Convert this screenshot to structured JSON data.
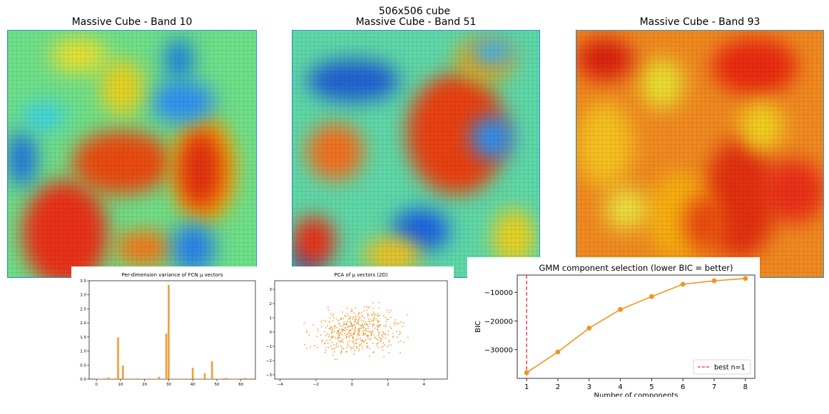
{
  "figure_title": "506x506 cube",
  "colors": {
    "accent": "#f0a040",
    "best_line": "#e03030",
    "bic_line": "#f0961e"
  },
  "heatmaps": [
    {
      "title": "Massive Cube - Band 10",
      "colormap": "jet"
    },
    {
      "title": "Massive Cube - Band 51",
      "colormap": "jet"
    },
    {
      "title": "Massive Cube - Band 93",
      "colormap": "jet"
    }
  ],
  "chart_data": [
    {
      "type": "bar",
      "title": "Per-dimension variance of FCN μ vectors",
      "xlabel": "",
      "ylabel": "",
      "xlim": [
        -3,
        66
      ],
      "ylim": [
        0,
        3.5
      ],
      "xticks": [
        0,
        10,
        20,
        30,
        40,
        50,
        60
      ],
      "yticks": [
        0.0,
        0.5,
        1.0,
        1.5,
        2.0,
        2.5,
        3.0,
        3.5
      ],
      "categories": [
        0,
        1,
        2,
        3,
        4,
        5,
        6,
        7,
        8,
        9,
        10,
        11,
        12,
        13,
        14,
        15,
        16,
        17,
        18,
        19,
        20,
        21,
        22,
        23,
        24,
        25,
        26,
        27,
        28,
        29,
        30,
        31,
        32,
        33,
        34,
        35,
        36,
        37,
        38,
        39,
        40,
        41,
        42,
        43,
        44,
        45,
        46,
        47,
        48,
        49,
        50,
        51,
        52,
        53,
        54,
        55,
        56,
        57,
        58,
        59,
        60,
        61,
        62,
        63
      ],
      "values": [
        0.01,
        0.01,
        0.01,
        0.02,
        0.02,
        0.06,
        0.02,
        0.01,
        0.03,
        1.48,
        0.01,
        0.48,
        0.02,
        0.01,
        0.01,
        0.01,
        0.01,
        0.02,
        0.01,
        0.01,
        0.01,
        0.01,
        0.02,
        0.01,
        0.01,
        0.01,
        0.08,
        0.01,
        0.02,
        1.62,
        3.35,
        0.02,
        0.01,
        0.01,
        0.01,
        0.01,
        0.02,
        0.01,
        0.01,
        0.01,
        0.4,
        0.02,
        0.01,
        0.02,
        0.01,
        0.2,
        0.01,
        0.01,
        0.63,
        0.02,
        0.01,
        0.01,
        0.01,
        0.03,
        0.04,
        0.01,
        0.02,
        0.01,
        0.01,
        0.02,
        0.01,
        0.03,
        0.04,
        0.02
      ]
    },
    {
      "type": "scatter",
      "title": "PCA of μ vectors (2D)",
      "xlabel": "",
      "ylabel": "",
      "xlim": [
        -4.3,
        5.3
      ],
      "ylim": [
        -3.3,
        3.6
      ],
      "xticks": [
        -4,
        -2,
        0,
        2,
        4
      ],
      "yticks": [
        -3,
        -2,
        -1,
        0,
        1,
        2,
        3
      ],
      "point_count": 500,
      "x_center": 0.3,
      "x_spread": 1.9,
      "y_spread": 1.1
    },
    {
      "type": "line",
      "title": "GMM component selection (lower BIC = better)",
      "xlabel": "Number of components",
      "ylabel": "BIC",
      "x": [
        1,
        2,
        3,
        4,
        5,
        6,
        7,
        8
      ],
      "y": [
        -38000,
        -30800,
        -22500,
        -16000,
        -11500,
        -7200,
        -6000,
        -5200
      ],
      "xlim": [
        0.7,
        8.3
      ],
      "ylim": [
        -40000,
        -4000
      ],
      "xticks": [
        1,
        2,
        3,
        4,
        5,
        6,
        7,
        8
      ],
      "yticks": [
        -30000,
        -20000,
        -10000
      ],
      "ytick_labels": [
        "−30000",
        "−20000",
        "−10000"
      ],
      "best_n": 1,
      "legend": "best n=1",
      "legend_position": "lower-right"
    }
  ]
}
